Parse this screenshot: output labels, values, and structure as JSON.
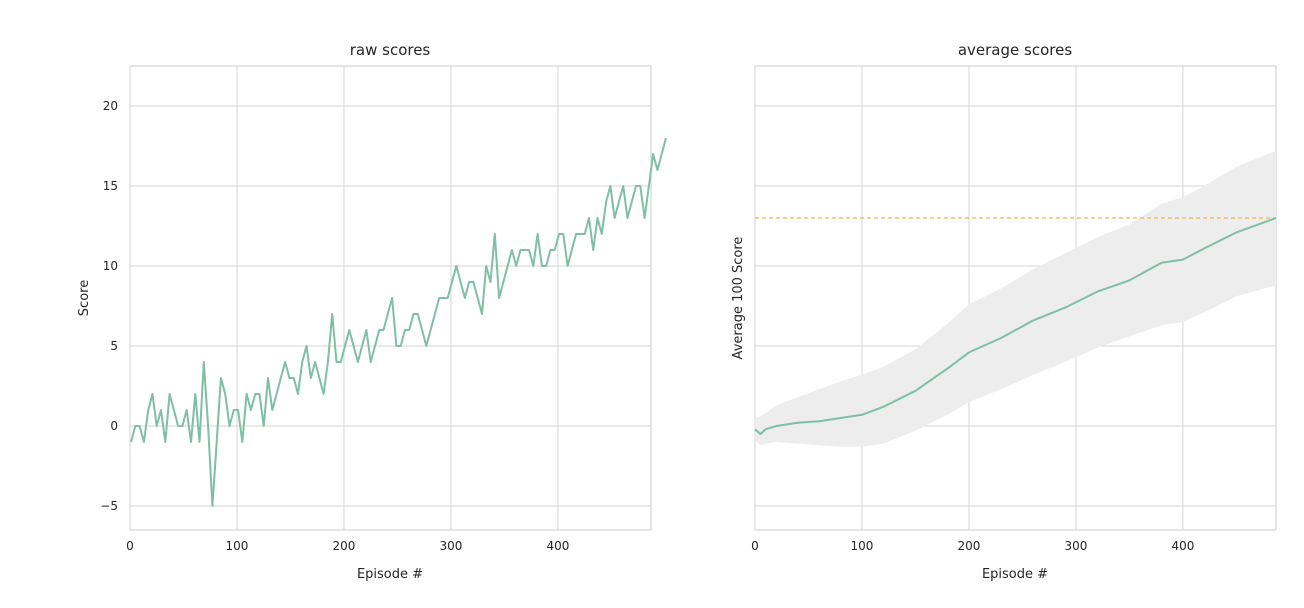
{
  "chart_data": [
    {
      "type": "line",
      "title": "raw scores",
      "xlabel": "Episode #",
      "ylabel": "Score",
      "xlim": [
        0,
        487
      ],
      "ylim": [
        -6.5,
        22.5
      ],
      "xticks": [
        0,
        100,
        200,
        300,
        400
      ],
      "yticks": [
        -5,
        0,
        5,
        10,
        15,
        20
      ],
      "grid": true,
      "line_color": "#7fbfa3",
      "x_start": 1,
      "x_step": 4,
      "series": [
        {
          "values": [
            -1,
            0,
            0,
            -1,
            1,
            2,
            0,
            1,
            -1,
            2,
            1,
            0,
            0,
            1,
            -1,
            2,
            -1,
            4,
            0,
            -5,
            -1,
            3,
            2,
            0,
            1,
            1,
            -1,
            2,
            1,
            2,
            2,
            0,
            3,
            1,
            2,
            3,
            4,
            3,
            3,
            2,
            4,
            5,
            3,
            4,
            3,
            2,
            4,
            7,
            4,
            4,
            5,
            6,
            5,
            4,
            5,
            6,
            4,
            5,
            6,
            6,
            7,
            8,
            5,
            5,
            6,
            6,
            7,
            7,
            6,
            5,
            6,
            7,
            8,
            8,
            8,
            9,
            10,
            9,
            8,
            9,
            9,
            8,
            7,
            10,
            9,
            12,
            8,
            9,
            10,
            11,
            10,
            11,
            11,
            11,
            10,
            12,
            10,
            10,
            11,
            11,
            12,
            12,
            10,
            11,
            12,
            12,
            12,
            13,
            11,
            13,
            12,
            14,
            15,
            13,
            14,
            15,
            13,
            14,
            15,
            15,
            13,
            15,
            17,
            16,
            17,
            18
          ]
        }
      ]
    },
    {
      "type": "line",
      "title": "average scores",
      "xlabel": "Episode #",
      "ylabel": "Average 100 Score",
      "xlim": [
        0,
        487
      ],
      "ylim": [
        -6.5,
        22.5
      ],
      "xticks": [
        0,
        100,
        200,
        300,
        400
      ],
      "yticks_shown": false,
      "grid": true,
      "line_color": "#7fbfa3",
      "band_color": "#ededed",
      "target_line": {
        "value": 13,
        "color": "#f2b24c"
      },
      "x": [
        0,
        5,
        10,
        20,
        40,
        60,
        80,
        100,
        120,
        150,
        180,
        200,
        230,
        260,
        290,
        320,
        350,
        380,
        400,
        420,
        450,
        487
      ],
      "mean": [
        -0.2,
        -0.5,
        -0.2,
        0.0,
        0.2,
        0.3,
        0.5,
        0.7,
        1.2,
        2.2,
        3.6,
        4.6,
        5.5,
        6.6,
        7.4,
        8.4,
        9.1,
        10.2,
        10.4,
        11.1,
        12.1,
        13.0
      ],
      "band_upper": [
        0.5,
        0.6,
        0.8,
        1.3,
        1.8,
        2.3,
        2.8,
        3.2,
        3.7,
        4.8,
        6.4,
        7.6,
        8.6,
        9.8,
        10.8,
        11.8,
        12.6,
        13.9,
        14.3,
        15.0,
        16.2,
        17.2
      ],
      "band_lower": [
        -0.9,
        -1.2,
        -1.1,
        -1.0,
        -1.1,
        -1.2,
        -1.3,
        -1.3,
        -1.1,
        -0.3,
        0.7,
        1.5,
        2.3,
        3.2,
        4.0,
        4.9,
        5.6,
        6.3,
        6.5,
        7.1,
        8.1,
        8.8
      ]
    }
  ]
}
